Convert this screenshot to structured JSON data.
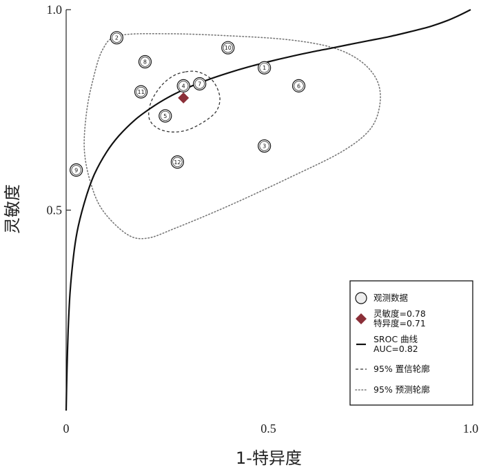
{
  "chart_data": {
    "type": "scatter",
    "xlabel": "1-特异度",
    "ylabel": "灵敏度",
    "xlim": [
      0,
      1
    ],
    "ylim": [
      0,
      1
    ],
    "x_ticks": [
      "0",
      "0.5",
      "1.0"
    ],
    "y_ticks": [
      "0.5",
      "1.0"
    ],
    "x_tick_values": [
      0,
      0.5,
      1.0
    ],
    "y_tick_values": [
      0.5,
      1.0
    ],
    "grid": false,
    "legend_position": "bottom-right",
    "observed_studies": [
      {
        "label": "1",
        "x": 0.49,
        "y": 0.855
      },
      {
        "label": "2",
        "x": 0.125,
        "y": 0.93
      },
      {
        "label": "3",
        "x": 0.49,
        "y": 0.66
      },
      {
        "label": "4",
        "x": 0.29,
        "y": 0.81
      },
      {
        "label": "5",
        "x": 0.245,
        "y": 0.735
      },
      {
        "label": "6",
        "x": 0.575,
        "y": 0.81
      },
      {
        "label": "7",
        "x": 0.33,
        "y": 0.815
      },
      {
        "label": "8",
        "x": 0.195,
        "y": 0.87
      },
      {
        "label": "9",
        "x": 0.025,
        "y": 0.6
      },
      {
        "label": "10",
        "x": 0.4,
        "y": 0.905
      },
      {
        "label": "11",
        "x": 0.185,
        "y": 0.795
      },
      {
        "label": "12",
        "x": 0.275,
        "y": 0.62
      }
    ],
    "summary_point": {
      "x": 0.29,
      "y": 0.78,
      "sensitivity": 0.78,
      "specificity": 0.71,
      "color": "#8b2f38"
    },
    "sroc_curve": {
      "x": [
        0,
        0.002,
        0.005,
        0.01,
        0.02,
        0.03,
        0.05,
        0.07,
        0.1,
        0.13,
        0.17,
        0.21,
        0.25,
        0.3,
        0.35,
        0.4,
        0.45,
        0.5,
        0.55,
        0.6,
        0.65,
        0.7,
        0.75,
        0.8,
        0.85,
        0.9,
        0.94,
        0.97,
        1.0
      ],
      "y": [
        0,
        0.1,
        0.2,
        0.3,
        0.4,
        0.46,
        0.535,
        0.59,
        0.645,
        0.685,
        0.725,
        0.755,
        0.78,
        0.805,
        0.825,
        0.842,
        0.857,
        0.87,
        0.882,
        0.893,
        0.903,
        0.913,
        0.923,
        0.933,
        0.945,
        0.958,
        0.972,
        0.985,
        1.0
      ],
      "auc": 0.82
    },
    "confidence_contour_95": {
      "x": [
        0.295,
        0.325,
        0.355,
        0.373,
        0.38,
        0.37,
        0.34,
        0.3,
        0.26,
        0.225,
        0.205,
        0.21,
        0.235,
        0.265,
        0.295
      ],
      "y": [
        0.845,
        0.845,
        0.83,
        0.805,
        0.775,
        0.745,
        0.72,
        0.7,
        0.695,
        0.705,
        0.73,
        0.77,
        0.81,
        0.835,
        0.845
      ],
      "style": "dashed"
    },
    "prediction_contour_95": {
      "x": [
        0.13,
        0.25,
        0.4,
        0.55,
        0.66,
        0.73,
        0.77,
        0.775,
        0.75,
        0.68,
        0.55,
        0.4,
        0.27,
        0.2,
        0.15,
        0.09,
        0.06,
        0.045,
        0.05,
        0.065,
        0.09,
        0.13
      ],
      "y": [
        0.935,
        0.94,
        0.935,
        0.925,
        0.905,
        0.87,
        0.82,
        0.76,
        0.7,
        0.645,
        0.58,
        0.51,
        0.455,
        0.43,
        0.44,
        0.5,
        0.57,
        0.65,
        0.74,
        0.82,
        0.9,
        0.935
      ],
      "style": "dotted"
    },
    "legend": [
      {
        "key": "observed",
        "lines": [
          "观测数据"
        ]
      },
      {
        "key": "summary",
        "lines": [
          "灵敏度=0.78",
          "特异度=0.71"
        ]
      },
      {
        "key": "sroc",
        "lines": [
          "SROC 曲线",
          "AUC=0.82"
        ]
      },
      {
        "key": "ci",
        "lines": [
          "95% 置信轮廓"
        ]
      },
      {
        "key": "pi",
        "lines": [
          "95% 预测轮廓"
        ]
      }
    ]
  }
}
